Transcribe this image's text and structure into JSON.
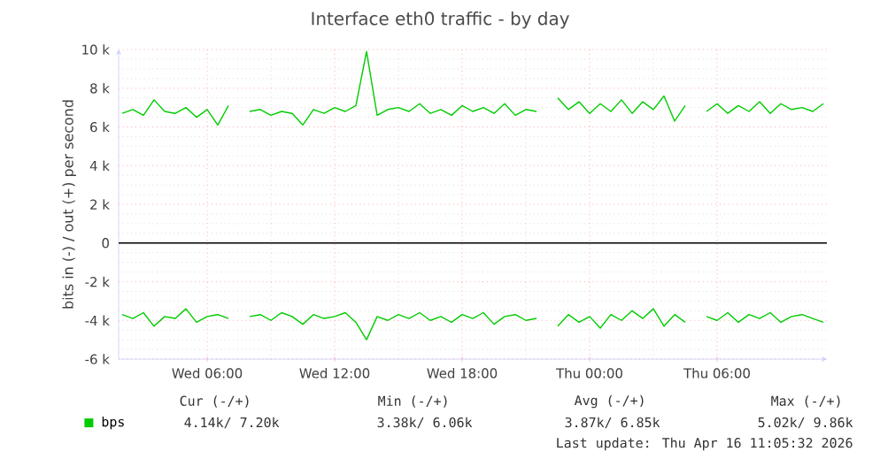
{
  "chart_data": {
    "type": "line",
    "title": "Interface eth0 traffic - by day",
    "ylabel": "bits in (-) / out (+) per second",
    "x": [
      "2026-04-15T02:00",
      "2026-04-15T02:30",
      "2026-04-15T03:00",
      "2026-04-15T03:30",
      "2026-04-15T04:00",
      "2026-04-15T04:30",
      "2026-04-15T05:00",
      "2026-04-15T05:30",
      "2026-04-15T06:00",
      "2026-04-15T06:30",
      "2026-04-15T07:00",
      "2026-04-15T07:30",
      "2026-04-15T08:00",
      "2026-04-15T08:30",
      "2026-04-15T09:00",
      "2026-04-15T09:30",
      "2026-04-15T10:00",
      "2026-04-15T10:30",
      "2026-04-15T11:00",
      "2026-04-15T11:30",
      "2026-04-15T12:00",
      "2026-04-15T12:30",
      "2026-04-15T13:00",
      "2026-04-15T13:30",
      "2026-04-15T14:00",
      "2026-04-15T14:30",
      "2026-04-15T15:00",
      "2026-04-15T15:30",
      "2026-04-15T16:00",
      "2026-04-15T16:30",
      "2026-04-15T17:00",
      "2026-04-15T17:30",
      "2026-04-15T18:00",
      "2026-04-15T18:30",
      "2026-04-15T19:00",
      "2026-04-15T19:30",
      "2026-04-15T20:00",
      "2026-04-15T20:30",
      "2026-04-15T21:00",
      "2026-04-15T21:30",
      "2026-04-15T22:00",
      "2026-04-15T22:30",
      "2026-04-15T23:00",
      "2026-04-15T23:30",
      "2026-04-16T00:00",
      "2026-04-16T00:30",
      "2026-04-16T01:00",
      "2026-04-16T01:30",
      "2026-04-16T02:00",
      "2026-04-16T02:30",
      "2026-04-16T03:00",
      "2026-04-16T03:30",
      "2026-04-16T04:00",
      "2026-04-16T04:30",
      "2026-04-16T05:00",
      "2026-04-16T05:30",
      "2026-04-16T06:00",
      "2026-04-16T06:30",
      "2026-04-16T07:00",
      "2026-04-16T07:30",
      "2026-04-16T08:00",
      "2026-04-16T08:30",
      "2026-04-16T09:00",
      "2026-04-16T09:30",
      "2026-04-16T10:00",
      "2026-04-16T10:30",
      "2026-04-16T11:00"
    ],
    "series": [
      {
        "name": "bps",
        "color": "#00cc00",
        "values": [
          6700,
          6900,
          6600,
          7400,
          6800,
          6700,
          7000,
          6500,
          6900,
          6100,
          7100,
          null,
          6800,
          6900,
          6600,
          6800,
          6700,
          6100,
          6900,
          6700,
          7000,
          6800,
          7100,
          9900,
          6600,
          6900,
          7000,
          6800,
          7200,
          6700,
          6900,
          6600,
          7100,
          6800,
          7000,
          6700,
          7200,
          6600,
          6900,
          6800,
          null,
          7500,
          6900,
          7300,
          6700,
          7200,
          6800,
          7400,
          6700,
          7300,
          6900,
          7600,
          6300,
          7100,
          null,
          6800,
          7200,
          6700,
          7100,
          6800,
          7300,
          6700,
          7200,
          6900,
          7000,
          6800,
          7200
        ]
      },
      {
        "color": "#00cc00",
        "values": [
          -3700,
          -3900,
          -3600,
          -4300,
          -3800,
          -3900,
          -3400,
          -4100,
          -3800,
          -3700,
          -3900,
          null,
          -3800,
          -3700,
          -4000,
          -3600,
          -3800,
          -4200,
          -3700,
          -3900,
          -3800,
          -3600,
          -4100,
          -5000,
          -3800,
          -4000,
          -3700,
          -3900,
          -3600,
          -4000,
          -3800,
          -4100,
          -3700,
          -3900,
          -3600,
          -4200,
          -3800,
          -3700,
          -4000,
          -3900,
          null,
          -4300,
          -3700,
          -4100,
          -3800,
          -4400,
          -3700,
          -4000,
          -3500,
          -3900,
          -3400,
          -4300,
          -3700,
          -4100,
          null,
          -3800,
          -4000,
          -3600,
          -4100,
          -3700,
          -3900,
          -3600,
          -4100,
          -3800,
          -3700,
          -3900,
          -4100
        ]
      }
    ],
    "xlim": [
      "2026-04-15T01:50",
      "2026-04-16T11:10"
    ],
    "xticks": [
      {
        "value": "2026-04-15T06:00",
        "label": "Wed 06:00"
      },
      {
        "value": "2026-04-15T12:00",
        "label": "Wed 12:00"
      },
      {
        "value": "2026-04-15T18:00",
        "label": "Wed 18:00"
      },
      {
        "value": "2026-04-16T00:00",
        "label": "Thu 00:00"
      },
      {
        "value": "2026-04-16T06:00",
        "label": "Thu 06:00"
      }
    ],
    "ylim": [
      -6000,
      10000
    ],
    "yticks": [
      {
        "value": -6000,
        "label": "-6 k"
      },
      {
        "value": -4000,
        "label": "-4 k"
      },
      {
        "value": -2000,
        "label": "-2 k"
      },
      0,
      {
        "value": 2000,
        "label": "2 k"
      },
      {
        "value": 4000,
        "label": "4 k"
      },
      {
        "value": 6000,
        "label": "6 k"
      },
      {
        "value": 8000,
        "label": "8 k"
      },
      {
        "value": 10000,
        "label": "10 k"
      }
    ],
    "ref_lines": [
      {
        "axis": "y",
        "value": 0,
        "color": "#000000"
      }
    ],
    "grid": true,
    "legend": "bottom left",
    "annotations": [
      "Cur (-/+)",
      "Min (-/+)",
      "Avg (-/+)",
      "Max (-/+)",
      "4.14k/  7.20k",
      "3.38k/  6.06k",
      "3.87k/  6.85k",
      "5.02k/  9.86k",
      "Last update: Thu Apr 16 11:05:32 2026"
    ]
  }
}
